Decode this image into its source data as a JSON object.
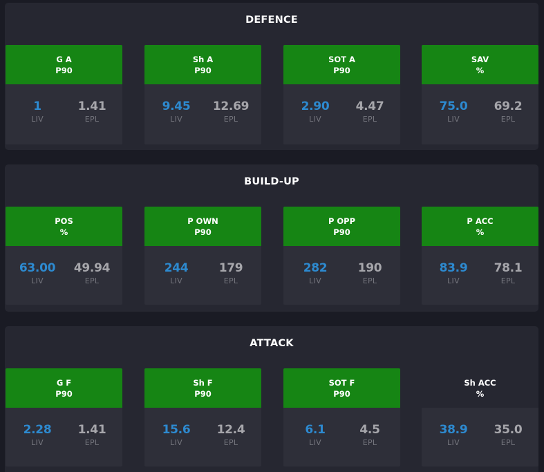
{
  "sections": [
    {
      "title": "DEFENCE",
      "cards": [
        {
          "line1": "G A",
          "line2": "P90",
          "highlight": true,
          "liv": "1",
          "epl": "1.41",
          "liv_label": "LIV",
          "epl_label": "EPL"
        },
        {
          "line1": "Sh A",
          "line2": "P90",
          "highlight": true,
          "liv": "9.45",
          "epl": "12.69",
          "liv_label": "LIV",
          "epl_label": "EPL"
        },
        {
          "line1": "SOT A",
          "line2": "P90",
          "highlight": true,
          "liv": "2.90",
          "epl": "4.47",
          "liv_label": "LIV",
          "epl_label": "EPL"
        },
        {
          "line1": "SAV",
          "line2": "%",
          "highlight": true,
          "liv": "75.0",
          "epl": "69.2",
          "liv_label": "LIV",
          "epl_label": "EPL"
        }
      ]
    },
    {
      "title": "BUILD-UP",
      "cards": [
        {
          "line1": "POS",
          "line2": "%",
          "highlight": true,
          "liv": "63.00",
          "epl": "49.94",
          "liv_label": "LIV",
          "epl_label": "EPL"
        },
        {
          "line1": "P OWN",
          "line2": "P90",
          "highlight": true,
          "liv": "244",
          "epl": "179",
          "liv_label": "LIV",
          "epl_label": "EPL"
        },
        {
          "line1": "P OPP",
          "line2": "P90",
          "highlight": true,
          "liv": "282",
          "epl": "190",
          "liv_label": "LIV",
          "epl_label": "EPL"
        },
        {
          "line1": "P ACC",
          "line2": "%",
          "highlight": true,
          "liv": "83.9",
          "epl": "78.1",
          "liv_label": "LIV",
          "epl_label": "EPL"
        }
      ]
    },
    {
      "title": "ATTACK",
      "cards": [
        {
          "line1": "G F",
          "line2": "P90",
          "highlight": true,
          "liv": "2.28",
          "epl": "1.41",
          "liv_label": "LIV",
          "epl_label": "EPL"
        },
        {
          "line1": "Sh F",
          "line2": "P90",
          "highlight": true,
          "liv": "15.6",
          "epl": "12.4",
          "liv_label": "LIV",
          "epl_label": "EPL"
        },
        {
          "line1": "SOT F",
          "line2": "P90",
          "highlight": true,
          "liv": "6.1",
          "epl": "4.5",
          "liv_label": "LIV",
          "epl_label": "EPL"
        },
        {
          "line1": "Sh ACC",
          "line2": "%",
          "highlight": false,
          "liv": "38.9",
          "epl": "35.0",
          "liv_label": "LIV",
          "epl_label": "EPL"
        }
      ]
    }
  ],
  "colors": {
    "highlight_header": "#168514",
    "liv_value": "#2d8ad0",
    "epl_value": "#a6a6ab"
  }
}
